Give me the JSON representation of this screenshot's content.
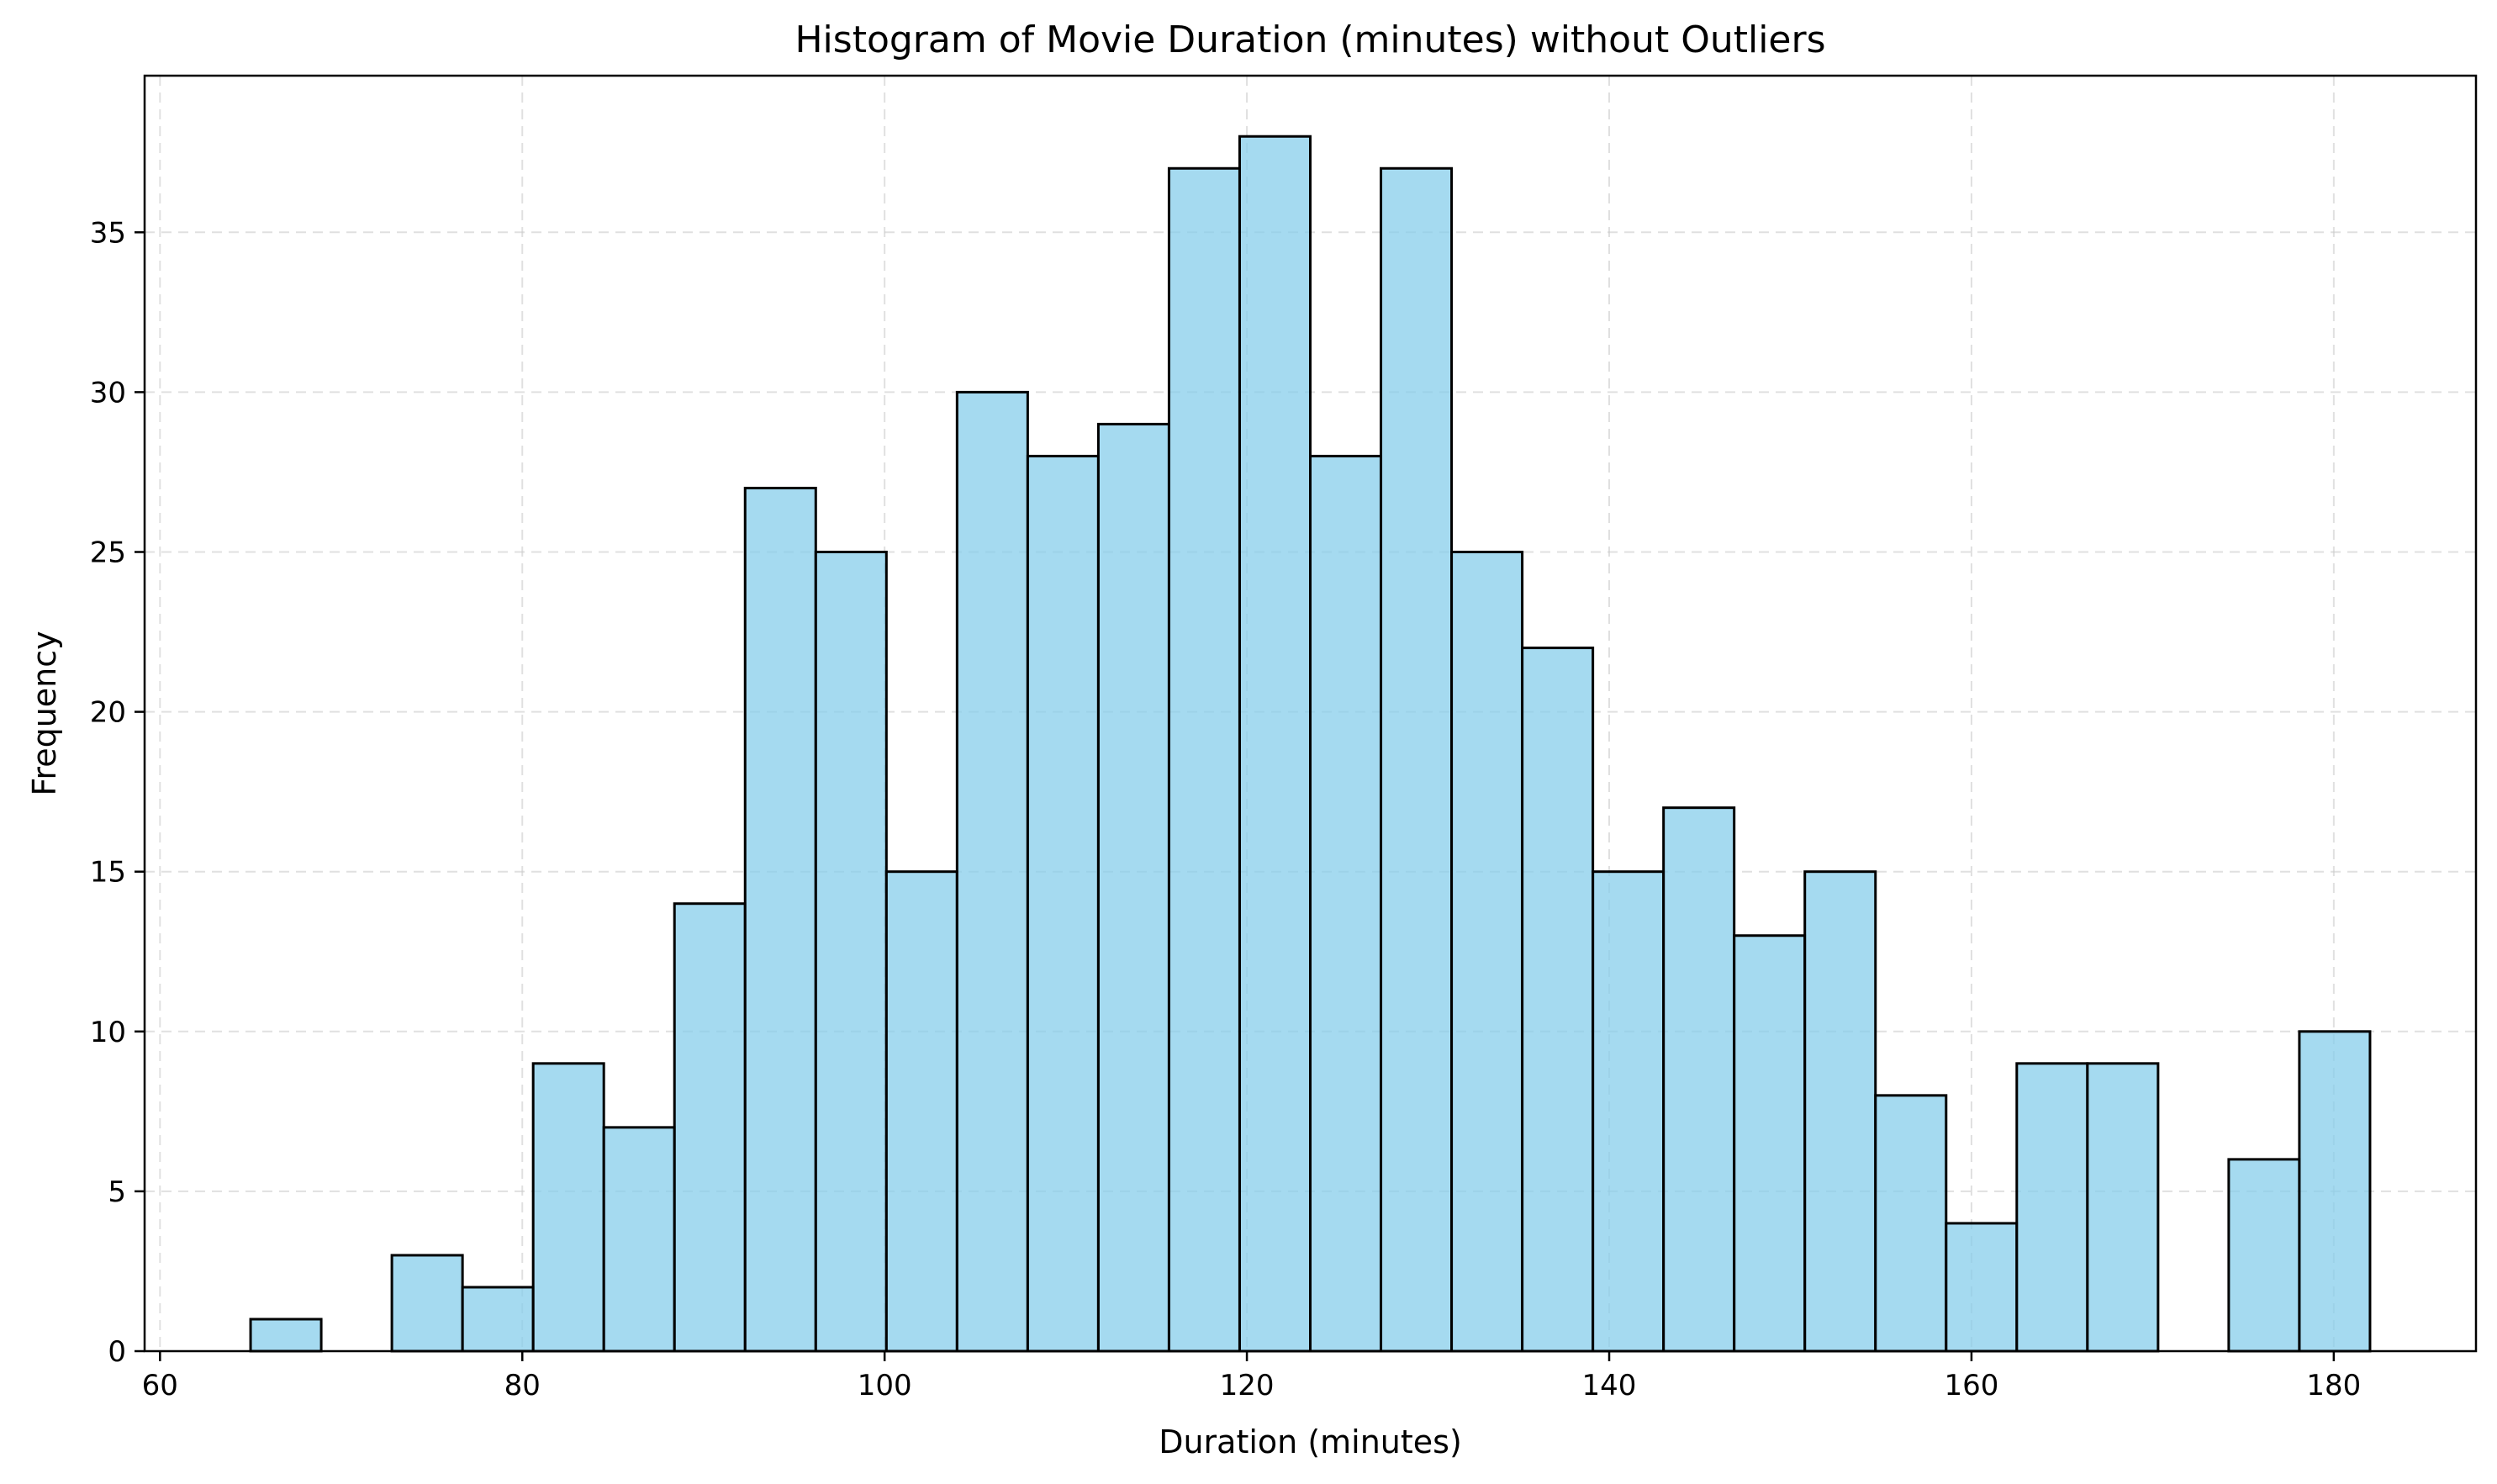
{
  "chart_data": {
    "type": "bar",
    "title": "Histogram of Movie Duration (minutes) without Outliers",
    "xlabel": "Duration (minutes)",
    "ylabel": "Frequency",
    "bin_start": 65,
    "bin_width": 3.9,
    "values": [
      1,
      0,
      3,
      2,
      9,
      7,
      14,
      27,
      25,
      15,
      30,
      28,
      29,
      37,
      38,
      28,
      37,
      25,
      22,
      15,
      17,
      13,
      15,
      8,
      4,
      9,
      9,
      0,
      6,
      10
    ],
    "xlim": [
      59.15,
      187.85
    ],
    "ylim": [
      0,
      39.9
    ],
    "xticks": [
      60,
      80,
      100,
      120,
      140,
      160,
      180
    ],
    "yticks": [
      0,
      5,
      10,
      15,
      20,
      25,
      30,
      35
    ],
    "grid": true,
    "colors": {
      "bar_fill": "#87ceeb",
      "bar_edge": "#000000"
    }
  }
}
